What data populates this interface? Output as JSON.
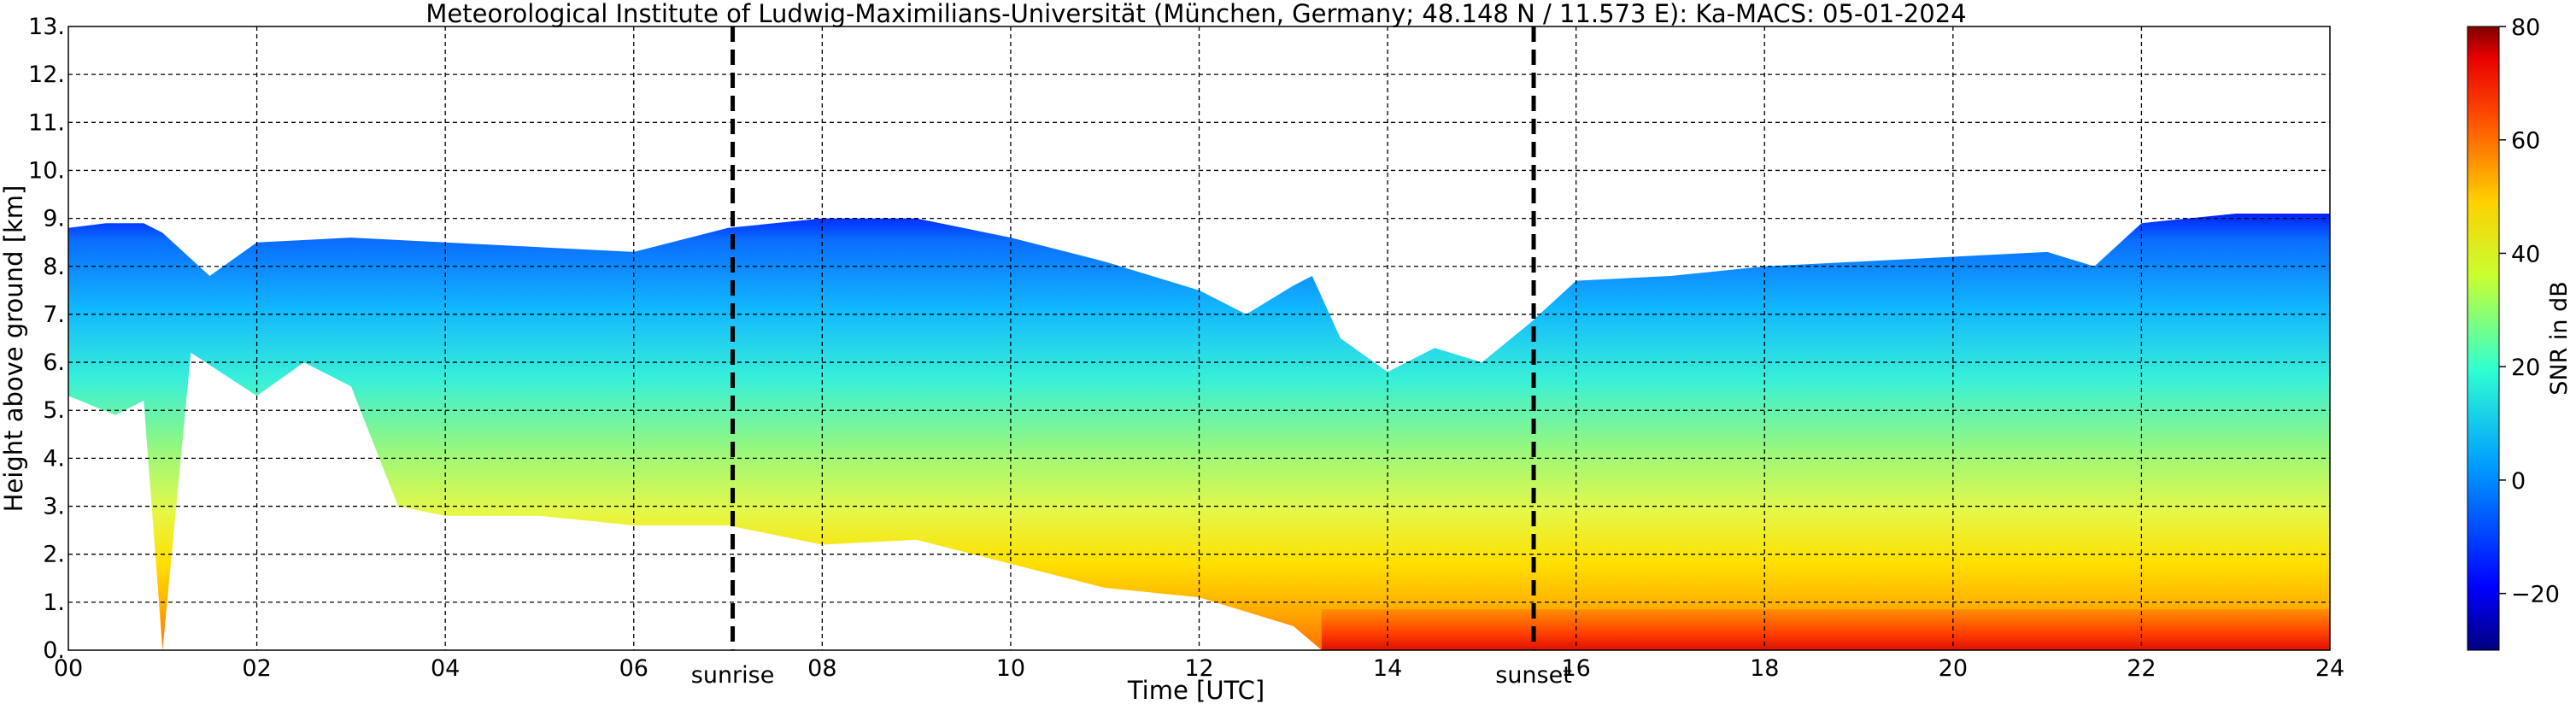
{
  "chart_data": {
    "type": "heatmap",
    "title": "Meteorological Institute of Ludwig-Maximilians-Universität (München, Germany; 48.148 N / 11.573 E):    Ka-MACS: 05-01-2024",
    "xlabel": "Time [UTC]",
    "ylabel": "Height above ground [km]",
    "xlim": [
      0,
      24
    ],
    "ylim": [
      0,
      13
    ],
    "x_ticks": [
      "00",
      "02",
      "04",
      "06",
      "08",
      "10",
      "12",
      "14",
      "16",
      "18",
      "20",
      "22",
      "24"
    ],
    "y_ticks": [
      "0.",
      "1.",
      "2.",
      "3.",
      "4.",
      "5.",
      "6.",
      "7.",
      "8.",
      "9.",
      "10.",
      "11.",
      "12.",
      "13."
    ],
    "grid": true,
    "events": [
      {
        "label": "sunrise",
        "time": 7.05
      },
      {
        "label": "sunset",
        "time": 15.55
      }
    ],
    "colorbar": {
      "label": "SNR in dB",
      "range": [
        -30,
        80
      ],
      "ticks": [
        "80",
        "60",
        "40",
        "20",
        "0",
        "−20"
      ],
      "tick_values": [
        80,
        60,
        40,
        20,
        0,
        -20
      ],
      "colormap": "jet"
    },
    "echo": {
      "cloud_top_km": [
        [
          0.0,
          8.8
        ],
        [
          0.4,
          8.9
        ],
        [
          0.8,
          8.9
        ],
        [
          1.0,
          8.7
        ],
        [
          1.5,
          7.8
        ],
        [
          2.0,
          8.5
        ],
        [
          3.0,
          8.6
        ],
        [
          4.0,
          8.5
        ],
        [
          5.0,
          8.4
        ],
        [
          6.0,
          8.3
        ],
        [
          7.0,
          8.8
        ],
        [
          8.0,
          9.0
        ],
        [
          9.0,
          9.0
        ],
        [
          10.0,
          8.6
        ],
        [
          11.0,
          8.1
        ],
        [
          12.0,
          7.5
        ],
        [
          12.5,
          7.0
        ],
        [
          13.0,
          7.6
        ],
        [
          13.2,
          7.8
        ],
        [
          13.5,
          6.5
        ],
        [
          14.0,
          5.8
        ],
        [
          14.5,
          6.3
        ],
        [
          15.0,
          6.0
        ],
        [
          15.5,
          6.8
        ],
        [
          16.0,
          7.7
        ],
        [
          17.0,
          7.8
        ],
        [
          18.0,
          8.0
        ],
        [
          19.0,
          8.1
        ],
        [
          20.0,
          8.2
        ],
        [
          21.0,
          8.3
        ],
        [
          21.5,
          8.0
        ],
        [
          22.0,
          8.9
        ],
        [
          23.0,
          9.1
        ],
        [
          24.0,
          9.1
        ]
      ],
      "cloud_base_km": [
        [
          0.0,
          5.3
        ],
        [
          0.5,
          4.9
        ],
        [
          0.8,
          5.2
        ],
        [
          1.0,
          0
        ],
        [
          1.3,
          6.2
        ],
        [
          2.0,
          5.3
        ],
        [
          2.5,
          6.0
        ],
        [
          3.0,
          5.5
        ],
        [
          3.5,
          3.0
        ],
        [
          4.0,
          2.8
        ],
        [
          5.0,
          2.8
        ],
        [
          6.0,
          2.6
        ],
        [
          7.0,
          2.6
        ],
        [
          8.0,
          2.2
        ],
        [
          9.0,
          2.3
        ],
        [
          10.0,
          1.8
        ],
        [
          11.0,
          1.3
        ],
        [
          12.0,
          1.1
        ],
        [
          13.0,
          0.5
        ],
        [
          13.3,
          0.0
        ],
        [
          24.0,
          0.0
        ]
      ]
    }
  }
}
